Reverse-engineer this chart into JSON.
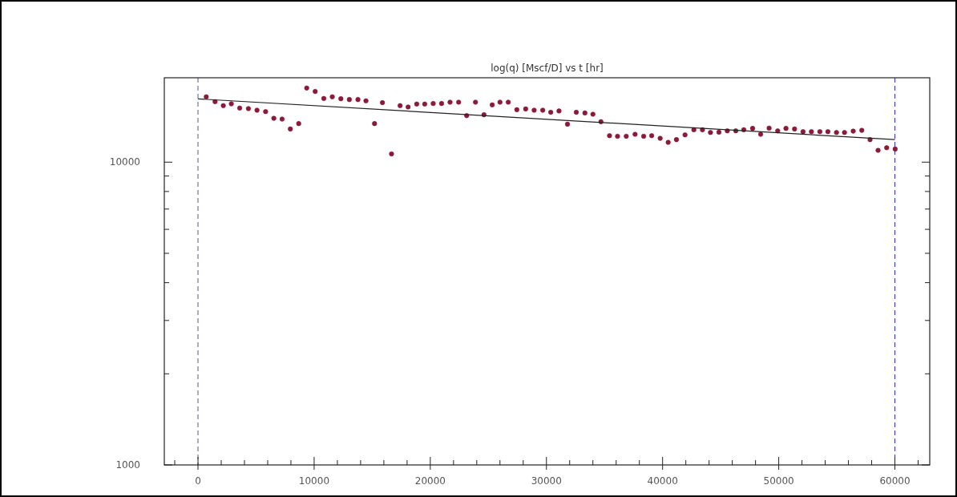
{
  "chart_data": {
    "type": "scatter",
    "title": "log(q) [Mscf/D] vs t [hr]",
    "log": "y",
    "marker": "circle",
    "xlim": [
      -2900,
      63000
    ],
    "ylim": [
      1000,
      19000
    ],
    "xticks": [
      {
        "value": -2000,
        "label": null
      },
      0,
      {
        "value": 2000,
        "label": null
      },
      {
        "value": 4000,
        "label": null
      },
      {
        "value": 6000,
        "label": null
      },
      {
        "value": 8000,
        "label": null
      },
      10000,
      {
        "value": 12000,
        "label": null
      },
      {
        "value": 14000,
        "label": null
      },
      {
        "value": 16000,
        "label": null
      },
      {
        "value": 18000,
        "label": null
      },
      20000,
      {
        "value": 22000,
        "label": null
      },
      {
        "value": 24000,
        "label": null
      },
      {
        "value": 26000,
        "label": null
      },
      {
        "value": 28000,
        "label": null
      },
      30000,
      {
        "value": 32000,
        "label": null
      },
      {
        "value": 34000,
        "label": null
      },
      {
        "value": 36000,
        "label": null
      },
      {
        "value": 38000,
        "label": null
      },
      40000,
      {
        "value": 42000,
        "label": null
      },
      {
        "value": 44000,
        "label": null
      },
      {
        "value": 46000,
        "label": null
      },
      {
        "value": 48000,
        "label": null
      },
      50000,
      {
        "value": 52000,
        "label": null
      },
      {
        "value": 54000,
        "label": null
      },
      {
        "value": 56000,
        "label": null
      },
      {
        "value": 58000,
        "label": null
      },
      60000,
      {
        "value": 62000,
        "label": null
      }
    ],
    "yticks": [
      1000,
      {
        "value": 2000,
        "label": null
      },
      {
        "value": 3000,
        "label": null
      },
      {
        "value": 4000,
        "label": null
      },
      {
        "value": 5000,
        "label": null
      },
      {
        "value": 6000,
        "label": null
      },
      {
        "value": 7000,
        "label": null
      },
      {
        "value": 8000,
        "label": null
      },
      {
        "value": 9000,
        "label": null
      },
      10000
    ],
    "ref_lines": [
      {
        "axis": "x",
        "value": 0,
        "color": "#5a5a8a",
        "line_style": "dashed"
      },
      {
        "axis": "x",
        "value": 60000,
        "color": "#3535c8",
        "line_style": "dashed"
      }
    ],
    "series": [
      {
        "color": "#8b1a3a",
        "x": [
          710,
          1470,
          2180,
          2870,
          3590,
          4340,
          5080,
          5820,
          6530,
          7240,
          7950,
          8670,
          9360,
          10090,
          10830,
          11560,
          12300,
          13030,
          13770,
          14460,
          15200,
          15880,
          16660,
          17400,
          18090,
          18830,
          19520,
          20250,
          20970,
          21700,
          22440,
          23130,
          23890,
          24620,
          25330,
          26000,
          26710,
          27450,
          28210,
          28940,
          29680,
          30370,
          31080,
          31810,
          32570,
          33310,
          34000,
          34690,
          35430,
          36120,
          36870,
          37630,
          38370,
          39060,
          39790,
          40480,
          41190,
          41930,
          42690,
          43430,
          44120,
          44850,
          45570,
          46300,
          46990,
          47750,
          48440,
          49170,
          49910,
          50620,
          51360,
          52090,
          52810,
          53540,
          54230,
          54970,
          55660,
          56410,
          57150,
          57860,
          58550,
          59290,
          60020
        ],
        "values": [
          16440,
          15840,
          15370,
          15590,
          15090,
          15030,
          14850,
          14690,
          13960,
          13880,
          12870,
          13410,
          17570,
          17120,
          16230,
          16440,
          16200,
          16100,
          16100,
          15940,
          13410,
          15720,
          10650,
          15370,
          15210,
          15560,
          15560,
          15620,
          15620,
          15780,
          15780,
          14250,
          15780,
          14340,
          15460,
          15780,
          15780,
          14900,
          14990,
          14850,
          14850,
          14610,
          14760,
          13350,
          14610,
          14540,
          14400,
          13600,
          12230,
          12180,
          12180,
          12360,
          12180,
          12230,
          11990,
          11630,
          11870,
          12310,
          12790,
          12790,
          12530,
          12560,
          12690,
          12690,
          12790,
          12930,
          12360,
          12950,
          12690,
          12930,
          12870,
          12610,
          12610,
          12610,
          12610,
          12530,
          12530,
          12660,
          12740,
          11870,
          10940,
          11160,
          11050
        ]
      },
      {
        "type": "line",
        "marker": "none",
        "color": "#222222",
        "x": [
          0,
          60000
        ],
        "values": [
          16180,
          11870
        ]
      }
    ]
  }
}
